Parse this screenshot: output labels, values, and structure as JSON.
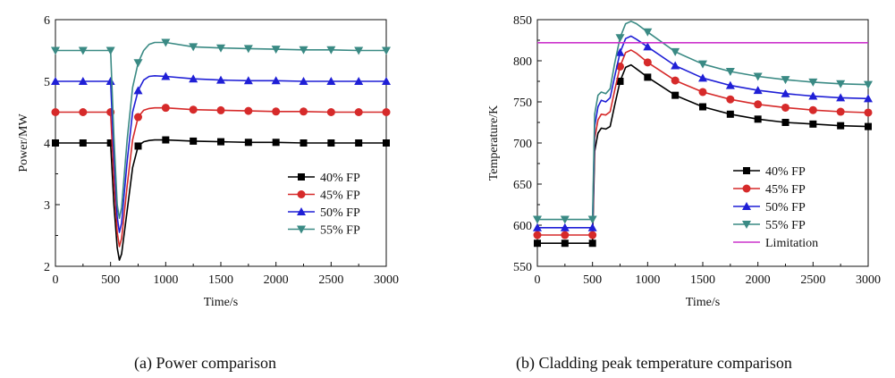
{
  "captions": {
    "a": "(a) Power comparison",
    "b": "(b) Cladding peak temperature comparison"
  },
  "chart_data": [
    {
      "type": "line",
      "title": "",
      "xlabel": "Time/s",
      "ylabel": "Power/MW",
      "xlim": [
        0,
        3000
      ],
      "ylim": [
        2,
        6
      ],
      "xticks": [
        0,
        500,
        1000,
        1500,
        2000,
        2500,
        3000
      ],
      "yticks": [
        2,
        3,
        4,
        5,
        6
      ],
      "legend_position": "center-right",
      "series": [
        {
          "name": "40% FP",
          "color": "#000000",
          "marker": "square",
          "x": [
            0,
            250,
            500,
            530,
            560,
            580,
            600,
            650,
            700,
            750,
            800,
            850,
            900,
            1000,
            1250,
            1500,
            1750,
            2000,
            2250,
            2500,
            2750,
            3000
          ],
          "values": [
            4.0,
            4.0,
            4.0,
            3.0,
            2.3,
            2.1,
            2.2,
            2.9,
            3.6,
            3.95,
            4.02,
            4.04,
            4.05,
            4.05,
            4.03,
            4.02,
            4.01,
            4.01,
            4.0,
            4.0,
            4.0,
            4.0
          ]
        },
        {
          "name": "45% FP",
          "color": "#d62a2a",
          "marker": "circle",
          "x": [
            0,
            250,
            500,
            530,
            560,
            580,
            600,
            650,
            700,
            750,
            800,
            850,
            900,
            1000,
            1250,
            1500,
            1750,
            2000,
            2250,
            2500,
            2750,
            3000
          ],
          "values": [
            4.5,
            4.5,
            4.5,
            3.4,
            2.55,
            2.32,
            2.45,
            3.3,
            4.05,
            4.42,
            4.53,
            4.56,
            4.57,
            4.57,
            4.54,
            4.53,
            4.52,
            4.51,
            4.51,
            4.5,
            4.5,
            4.5
          ]
        },
        {
          "name": "50% FP",
          "color": "#1f1fd6",
          "marker": "triangle-up",
          "x": [
            0,
            250,
            500,
            530,
            560,
            580,
            600,
            650,
            700,
            750,
            800,
            850,
            900,
            1000,
            1250,
            1500,
            1750,
            2000,
            2250,
            2500,
            2750,
            3000
          ],
          "values": [
            5.0,
            5.0,
            5.0,
            3.8,
            2.8,
            2.55,
            2.7,
            3.7,
            4.5,
            4.85,
            5.02,
            5.08,
            5.09,
            5.08,
            5.04,
            5.02,
            5.01,
            5.01,
            5.0,
            5.0,
            5.0,
            5.0
          ]
        },
        {
          "name": "55% FP",
          "color": "#3a8a84",
          "marker": "triangle-down",
          "x": [
            0,
            250,
            500,
            530,
            560,
            580,
            600,
            650,
            700,
            750,
            800,
            850,
            900,
            1000,
            1250,
            1500,
            1750,
            2000,
            2250,
            2500,
            2750,
            3000
          ],
          "values": [
            5.5,
            5.5,
            5.5,
            4.1,
            3.0,
            2.78,
            2.95,
            4.05,
            4.9,
            5.3,
            5.5,
            5.6,
            5.63,
            5.63,
            5.56,
            5.54,
            5.53,
            5.52,
            5.51,
            5.51,
            5.5,
            5.5
          ]
        }
      ]
    },
    {
      "type": "line",
      "title": "",
      "xlabel": "Time/s",
      "ylabel": "Temperature/K",
      "xlim": [
        0,
        3000
      ],
      "ylim": [
        550,
        850
      ],
      "xticks": [
        0,
        500,
        1000,
        1500,
        2000,
        2500,
        3000
      ],
      "yticks": [
        550,
        600,
        650,
        700,
        750,
        800,
        850
      ],
      "legend_position": "center-right",
      "series": [
        {
          "name": "40% FP",
          "color": "#000000",
          "marker": "square",
          "x": [
            0,
            250,
            500,
            520,
            550,
            580,
            620,
            660,
            700,
            750,
            800,
            850,
            900,
            1000,
            1250,
            1500,
            1750,
            2000,
            2250,
            2500,
            2750,
            3000
          ],
          "values": [
            578,
            578,
            578,
            690,
            712,
            718,
            717,
            720,
            745,
            775,
            792,
            795,
            790,
            780,
            758,
            744,
            735,
            729,
            725,
            723,
            721,
            720
          ]
        },
        {
          "name": "45% FP",
          "color": "#d62a2a",
          "marker": "circle",
          "x": [
            0,
            250,
            500,
            520,
            550,
            580,
            620,
            660,
            700,
            750,
            800,
            850,
            900,
            1000,
            1250,
            1500,
            1750,
            2000,
            2250,
            2500,
            2750,
            3000
          ],
          "values": [
            588,
            588,
            588,
            705,
            728,
            735,
            734,
            738,
            763,
            793,
            810,
            813,
            809,
            798,
            776,
            762,
            753,
            747,
            743,
            740,
            738,
            737
          ]
        },
        {
          "name": "50% FP",
          "color": "#1f1fd6",
          "marker": "triangle-up",
          "x": [
            0,
            250,
            500,
            520,
            550,
            580,
            620,
            660,
            700,
            750,
            800,
            850,
            900,
            1000,
            1250,
            1500,
            1750,
            2000,
            2250,
            2500,
            2750,
            3000
          ],
          "values": [
            597,
            597,
            597,
            720,
            744,
            752,
            750,
            755,
            780,
            810,
            827,
            830,
            826,
            817,
            794,
            779,
            770,
            764,
            760,
            757,
            755,
            754
          ]
        },
        {
          "name": "55% FP",
          "color": "#3a8a84",
          "marker": "triangle-down",
          "x": [
            0,
            250,
            500,
            520,
            550,
            580,
            620,
            660,
            700,
            750,
            800,
            850,
            900,
            1000,
            1250,
            1500,
            1750,
            2000,
            2250,
            2500,
            2750,
            3000
          ],
          "values": [
            607,
            607,
            607,
            735,
            758,
            762,
            760,
            766,
            796,
            828,
            845,
            848,
            845,
            835,
            811,
            796,
            787,
            781,
            777,
            774,
            772,
            771
          ]
        },
        {
          "name": "Limitation",
          "color": "#cc33cc",
          "marker": "none",
          "x": [
            0,
            3000
          ],
          "values": [
            822,
            822
          ]
        }
      ]
    }
  ]
}
